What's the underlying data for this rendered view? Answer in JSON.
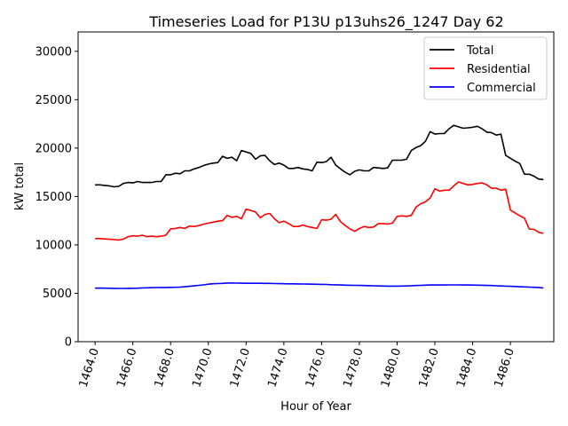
{
  "chart_data": {
    "type": "line",
    "title": "Timeseries Load for P13U p13uhs26_1247  Day 62",
    "xlabel": "Hour of Year",
    "ylabel": "kW total",
    "xlim": [
      1463.1,
      1488.3
    ],
    "ylim": [
      0,
      32000
    ],
    "x_ticks": [
      "1464.0",
      "1466.0",
      "1468.0",
      "1470.0",
      "1472.0",
      "1474.0",
      "1476.0",
      "1478.0",
      "1480.0",
      "1482.0",
      "1484.0",
      "1486.0"
    ],
    "x_tick_values": [
      1464,
      1466,
      1468,
      1470,
      1472,
      1474,
      1476,
      1478,
      1480,
      1482,
      1484,
      1486
    ],
    "y_ticks": [
      "0",
      "5000",
      "10000",
      "15000",
      "20000",
      "25000",
      "30000"
    ],
    "y_tick_values": [
      0,
      5000,
      10000,
      15000,
      20000,
      25000,
      30000
    ],
    "grid": false,
    "legend_position": "top-right",
    "x": [
      1464.0,
      1464.25,
      1464.5,
      1464.75,
      1465.0,
      1465.25,
      1465.5,
      1465.75,
      1466.0,
      1466.25,
      1466.5,
      1466.75,
      1467.0,
      1467.25,
      1467.5,
      1467.75,
      1468.0,
      1468.25,
      1468.5,
      1468.75,
      1469.0,
      1469.25,
      1469.5,
      1469.75,
      1470.0,
      1470.25,
      1470.5,
      1470.75,
      1471.0,
      1471.25,
      1471.5,
      1471.75,
      1472.0,
      1472.25,
      1472.5,
      1472.75,
      1473.0,
      1473.25,
      1473.5,
      1473.75,
      1474.0,
      1474.25,
      1474.5,
      1474.75,
      1475.0,
      1475.25,
      1475.5,
      1475.75,
      1476.0,
      1476.25,
      1476.5,
      1476.75,
      1477.0,
      1477.25,
      1477.5,
      1477.75,
      1478.0,
      1478.25,
      1478.5,
      1478.75,
      1479.0,
      1479.25,
      1479.5,
      1479.75,
      1480.0,
      1480.25,
      1480.5,
      1480.75,
      1481.0,
      1481.25,
      1481.5,
      1481.75,
      1482.0,
      1482.25,
      1482.5,
      1482.75,
      1483.0,
      1483.25,
      1483.5,
      1483.75,
      1484.0,
      1484.25,
      1484.5,
      1484.75,
      1485.0,
      1485.25,
      1485.5,
      1485.75,
      1486.0,
      1486.25,
      1486.5,
      1486.75,
      1487.0,
      1487.25,
      1487.5,
      1487.75
    ],
    "series": [
      {
        "name": "Total",
        "color": "#000000",
        "values": [
          16200,
          16200,
          16150,
          16100,
          16000,
          16050,
          16350,
          16450,
          16400,
          16550,
          16450,
          16450,
          16450,
          16550,
          16550,
          17250,
          17250,
          17400,
          17350,
          17650,
          17650,
          17850,
          18000,
          18200,
          18350,
          18450,
          18500,
          19150,
          18950,
          19050,
          18700,
          19750,
          19600,
          19450,
          18850,
          19200,
          19250,
          18700,
          18300,
          18450,
          18250,
          17900,
          17900,
          18000,
          17850,
          17800,
          17650,
          18550,
          18500,
          18600,
          19050,
          18250,
          17850,
          17500,
          17250,
          17600,
          17750,
          17650,
          17650,
          18000,
          17950,
          17900,
          17950,
          18750,
          18750,
          18750,
          18850,
          19750,
          20050,
          20250,
          20700,
          21700,
          21450,
          21500,
          21500,
          22000,
          22350,
          22200,
          22050,
          22100,
          22150,
          22250,
          22000,
          21650,
          21600,
          21350,
          21450,
          19250,
          18950,
          18650,
          18400,
          17300,
          17300,
          17100,
          16800,
          16750
        ]
      },
      {
        "name": "Residential",
        "color": "#ff0000",
        "values": [
          10650,
          10650,
          10620,
          10580,
          10550,
          10500,
          10600,
          10850,
          10950,
          10900,
          11000,
          10850,
          10900,
          10850,
          10900,
          11000,
          11650,
          11700,
          11800,
          11700,
          11950,
          11900,
          12000,
          12150,
          12250,
          12350,
          12450,
          12500,
          13050,
          12850,
          12950,
          12700,
          13700,
          13550,
          13400,
          12800,
          13150,
          13250,
          12700,
          12300,
          12450,
          12200,
          11900,
          11900,
          12050,
          11900,
          11800,
          11700,
          12600,
          12550,
          12650,
          13150,
          12400,
          12000,
          11650,
          11400,
          11700,
          11900,
          11800,
          11850,
          12200,
          12200,
          12150,
          12250,
          12950,
          13000,
          12950,
          13050,
          13900,
          14250,
          14450,
          14850,
          15800,
          15550,
          15650,
          15650,
          16100,
          16500,
          16350,
          16200,
          16250,
          16350,
          16400,
          16200,
          15850,
          15850,
          15650,
          15750,
          13600,
          13300,
          13000,
          12750,
          11650,
          11600,
          11300,
          11200
        ]
      },
      {
        "name": "Commercial",
        "color": "#0000ff",
        "values": [
          5530,
          5540,
          5530,
          5520,
          5510,
          5500,
          5500,
          5510,
          5520,
          5530,
          5560,
          5570,
          5580,
          5590,
          5600,
          5600,
          5610,
          5620,
          5640,
          5680,
          5720,
          5770,
          5820,
          5870,
          5940,
          5990,
          6010,
          6020,
          6060,
          6060,
          6050,
          6040,
          6030,
          6030,
          6030,
          6030,
          6020,
          6020,
          6010,
          6000,
          5990,
          5980,
          5980,
          5970,
          5960,
          5950,
          5940,
          5930,
          5920,
          5910,
          5890,
          5880,
          5860,
          5840,
          5830,
          5820,
          5810,
          5800,
          5790,
          5780,
          5760,
          5750,
          5740,
          5740,
          5740,
          5750,
          5760,
          5780,
          5800,
          5820,
          5840,
          5860,
          5860,
          5860,
          5860,
          5870,
          5870,
          5870,
          5860,
          5860,
          5850,
          5840,
          5830,
          5810,
          5800,
          5780,
          5760,
          5740,
          5720,
          5700,
          5680,
          5660,
          5640,
          5620,
          5600,
          5550
        ]
      }
    ]
  }
}
